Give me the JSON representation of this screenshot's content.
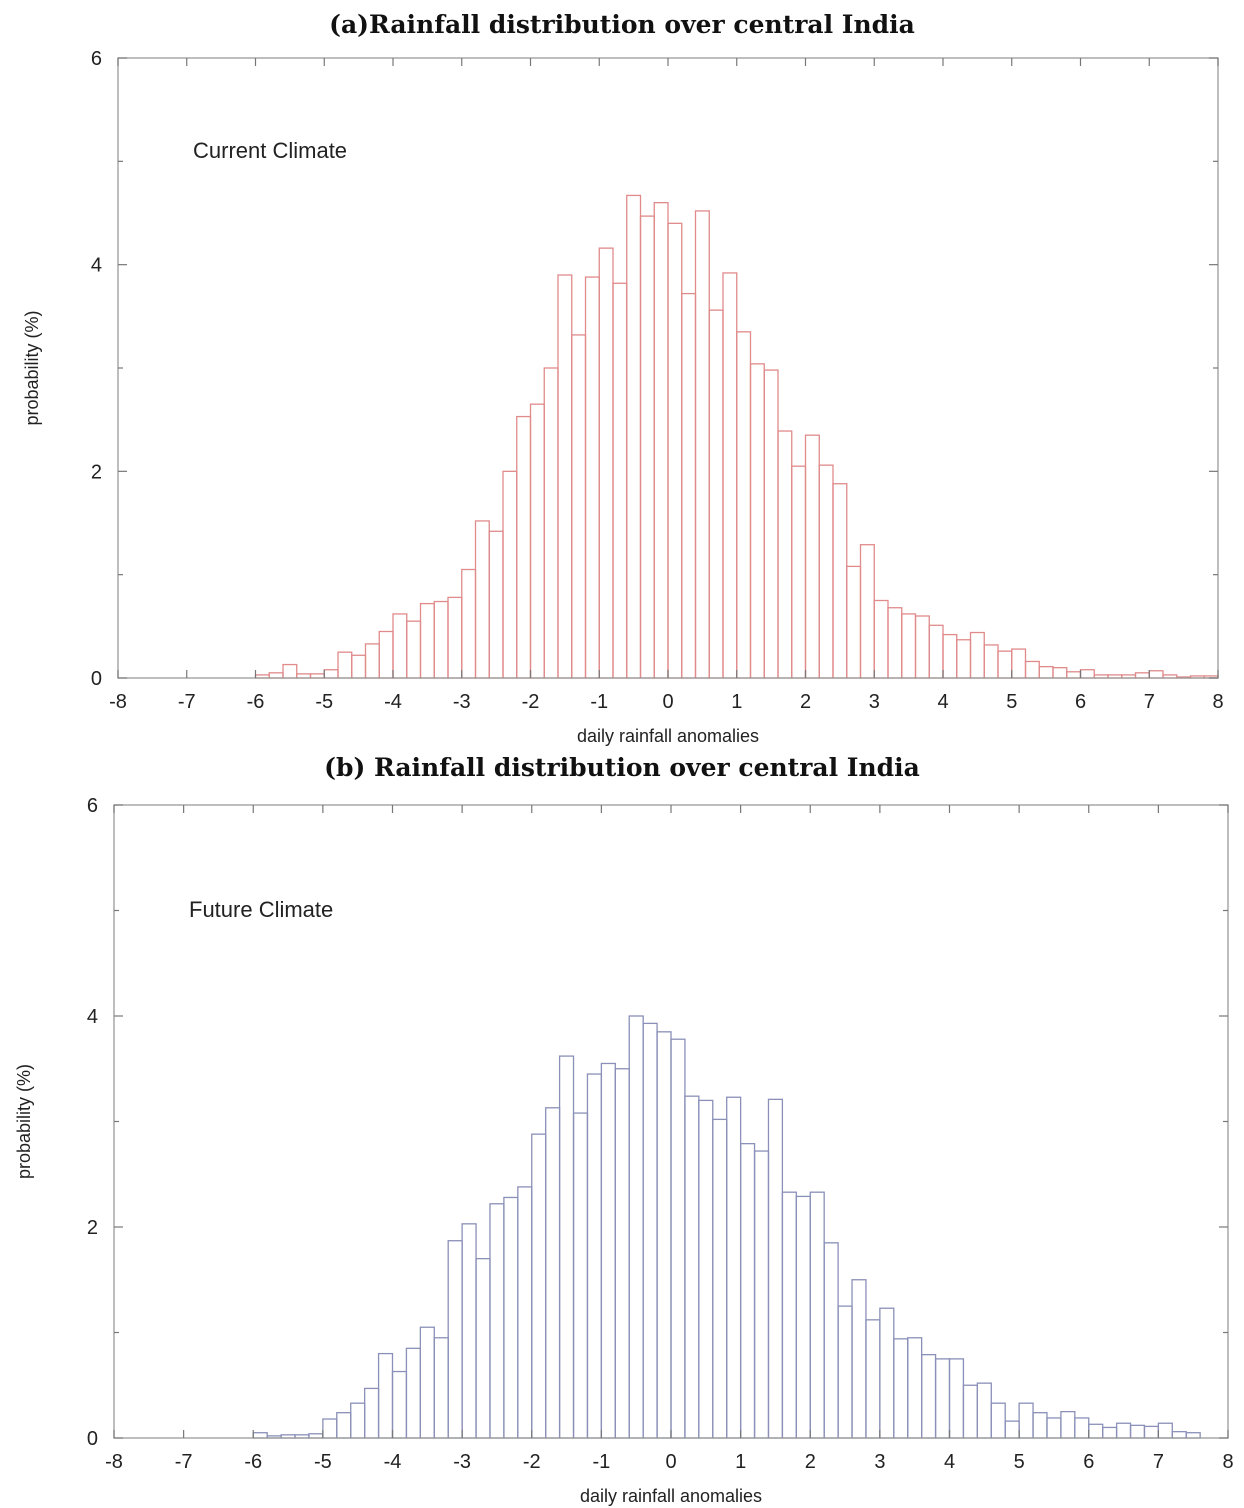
{
  "chart_data": [
    {
      "type": "bar",
      "title": "(a)Rainfall distribution over central India",
      "xlabel": "daily rainfall anomalies",
      "ylabel": "probability (%)",
      "annotation": "Current Climate",
      "xlim": [
        -8,
        8
      ],
      "ylim": [
        0,
        6
      ],
      "xticks": [
        -8,
        -7,
        -6,
        -5,
        -4,
        -3,
        -2,
        -1,
        0,
        1,
        2,
        3,
        4,
        5,
        6,
        7,
        8
      ],
      "yticks": [
        0,
        2,
        4,
        6
      ],
      "grid": false,
      "bar_color": "#e08a8a",
      "bin_width": 0.2,
      "bin_start": -6.0,
      "values": [
        0.03,
        0.05,
        0.13,
        0.04,
        0.04,
        0.08,
        0.25,
        0.22,
        0.33,
        0.45,
        0.62,
        0.55,
        0.72,
        0.74,
        0.78,
        1.05,
        1.52,
        1.42,
        2.0,
        2.53,
        2.65,
        3.0,
        3.9,
        3.32,
        3.88,
        4.16,
        3.82,
        4.67,
        4.47,
        4.6,
        4.4,
        3.72,
        4.52,
        3.56,
        3.92,
        3.35,
        3.04,
        2.98,
        2.39,
        2.05,
        2.35,
        2.06,
        1.88,
        1.08,
        1.29,
        0.75,
        0.68,
        0.62,
        0.6,
        0.51,
        0.42,
        0.37,
        0.44,
        0.32,
        0.26,
        0.28,
        0.16,
        0.11,
        0.1,
        0.06,
        0.08,
        0.03,
        0.03,
        0.03,
        0.05,
        0.07,
        0.03,
        0.01,
        0.02,
        0.02
      ]
    },
    {
      "type": "bar",
      "title": "(b) Rainfall distribution over central India",
      "xlabel": "daily  rainfall anomalies",
      "ylabel": "probability (%)",
      "annotation": "Future Climate",
      "xlim": [
        -8,
        8
      ],
      "ylim": [
        0,
        6
      ],
      "xticks": [
        -8,
        -7,
        -6,
        -5,
        -4,
        -3,
        -2,
        -1,
        0,
        1,
        2,
        3,
        4,
        5,
        6,
        7,
        8
      ],
      "yticks": [
        0,
        2,
        4,
        6
      ],
      "grid": false,
      "bar_color": "#8a90b8",
      "bin_width": 0.2,
      "bin_start": -6.0,
      "values": [
        0.05,
        0.02,
        0.03,
        0.03,
        0.04,
        0.18,
        0.24,
        0.33,
        0.47,
        0.8,
        0.63,
        0.85,
        1.05,
        0.95,
        1.87,
        2.03,
        1.7,
        2.22,
        2.28,
        2.38,
        2.88,
        3.13,
        3.62,
        3.08,
        3.45,
        3.55,
        3.5,
        4.0,
        3.93,
        3.85,
        3.78,
        3.24,
        3.2,
        3.02,
        3.23,
        2.79,
        2.72,
        3.21,
        2.33,
        2.29,
        2.33,
        1.85,
        1.25,
        1.5,
        1.12,
        1.23,
        0.94,
        0.95,
        0.79,
        0.75,
        0.75,
        0.5,
        0.52,
        0.33,
        0.16,
        0.33,
        0.24,
        0.19,
        0.25,
        0.19,
        0.13,
        0.1,
        0.14,
        0.12,
        0.11,
        0.14,
        0.06,
        0.05
      ]
    }
  ]
}
